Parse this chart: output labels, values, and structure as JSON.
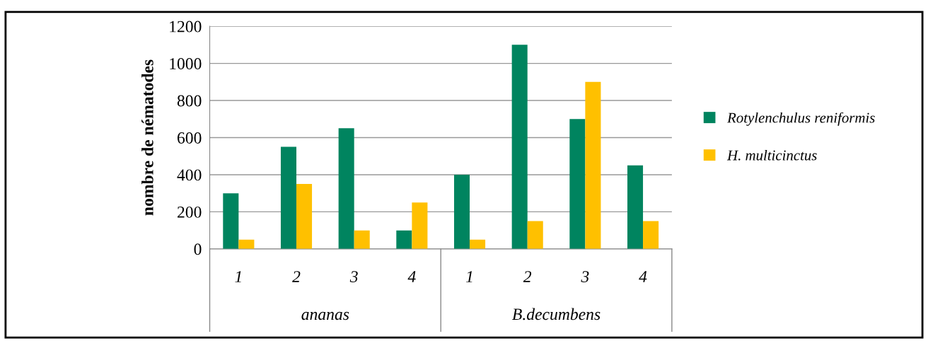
{
  "chart_data": {
    "type": "bar",
    "ylabel": "nombre de nématodes",
    "categories": [
      "1",
      "2",
      "3",
      "4",
      "1",
      "2",
      "3",
      "4"
    ],
    "annotations": [
      "ananas",
      "B.decumbens"
    ],
    "series": [
      {
        "name": "Rotylenchulus reniformis",
        "color": "#00845f",
        "values": [
          300,
          550,
          650,
          100,
          400,
          1100,
          700,
          450
        ]
      },
      {
        "name": "H. multicinctus",
        "color": "#ffc000",
        "values": [
          50,
          350,
          100,
          250,
          50,
          150,
          900,
          150
        ]
      }
    ],
    "ylim": [
      0,
      1200
    ],
    "yticks": [
      0,
      200,
      400,
      600,
      800,
      1000,
      1200
    ],
    "grid": "y",
    "legend": "right"
  }
}
